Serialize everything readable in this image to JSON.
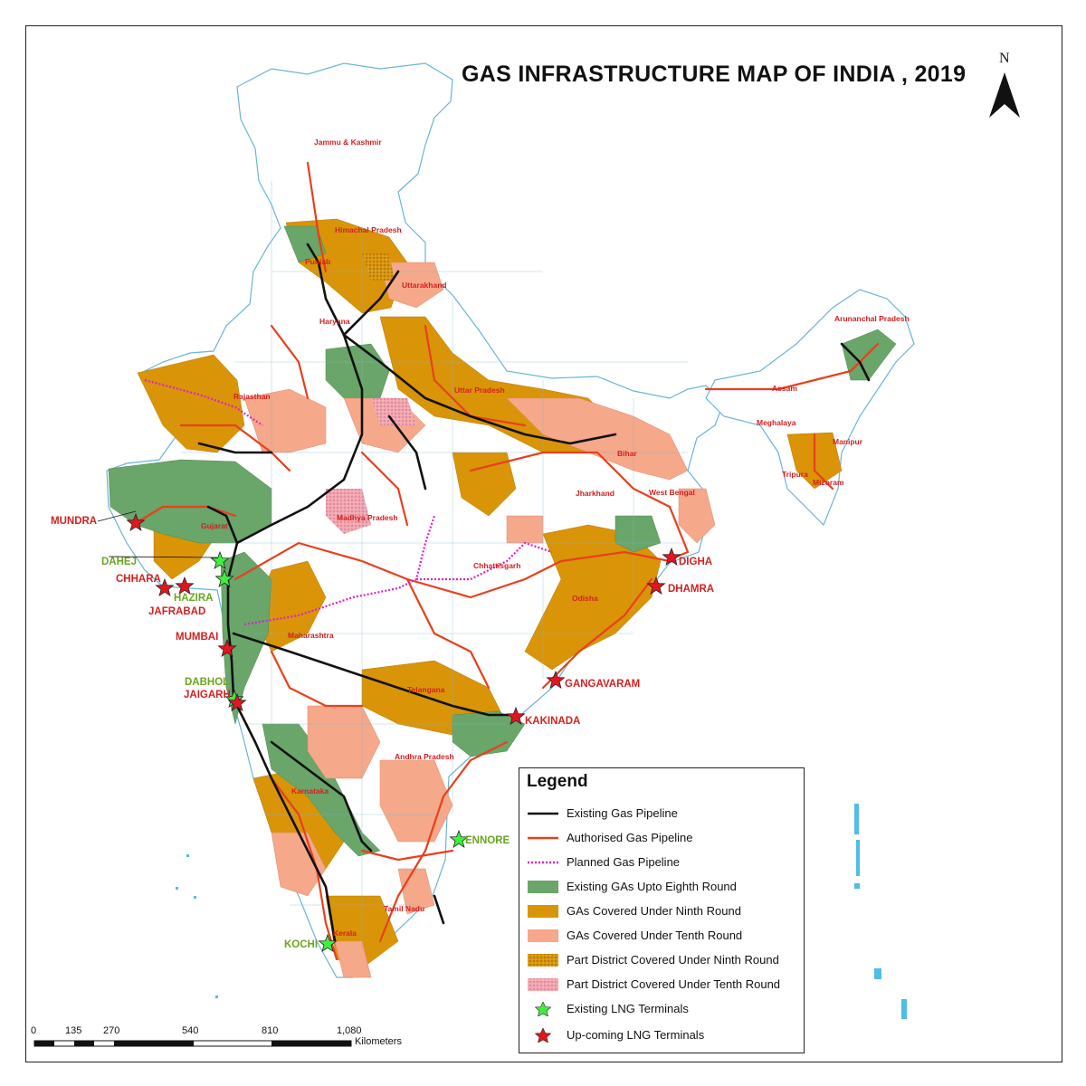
{
  "title": "GAS INFRASTRUCTURE MAP OF INDIA , 2019",
  "north_letter": "N",
  "legend": {
    "title": "Legend",
    "items": [
      {
        "label": "Existing Gas Pipeline",
        "symbol": "black-line",
        "color": "#111111"
      },
      {
        "label": "Authorised Gas Pipeline",
        "symbol": "red-line",
        "color": "#e8401c"
      },
      {
        "label": "Planned Gas Pipeline",
        "symbol": "magenta-dotted-line",
        "color": "#e020c8"
      },
      {
        "label": "Existing GAs Upto Eighth Round",
        "symbol": "green-fill",
        "color": "#6aa56a"
      },
      {
        "label": "GAs Covered Under Ninth Round",
        "symbol": "orange-fill",
        "color": "#d99408"
      },
      {
        "label": "GAs Covered Under Tenth Round",
        "symbol": "salmon-fill",
        "color": "#f5a88a"
      },
      {
        "label": "Part District Covered Under Ninth Round",
        "symbol": "orange-stipple-fill",
        "color": "#c9870a"
      },
      {
        "label": "Part District Covered Under Tenth Round",
        "symbol": "pink-stipple-fill",
        "color": "#e8a0b0"
      },
      {
        "label": "Existing LNG Terminals",
        "symbol": "green-star",
        "color": "#3ef03e"
      },
      {
        "label": "Up-coming LNG Terminals",
        "symbol": "red-star",
        "color": "#e3161e"
      }
    ]
  },
  "terminals_existing": [
    "DAHEJ",
    "HAZIRA",
    "DABHOL",
    "KOCHI",
    "ENNORE"
  ],
  "terminals_upcoming": [
    "MUNDRA",
    "CHHARA",
    "JAFRABAD",
    "MUMBAI",
    "JAIGARH",
    "GANGAVARAM",
    "KAKINADA",
    "DHAMRA",
    "DIGHA"
  ],
  "states": [
    "Jammu & Kashmir",
    "Himachal Pradesh",
    "Punjab",
    "Uttarakhand",
    "Haryana",
    "Rajasthan",
    "Uttar Pradesh",
    "Gujarat",
    "Madhya Pradesh",
    "Bihar",
    "Jharkhand",
    "West Bengal",
    "Chhattisgarh",
    "Odisha",
    "Maharashtra",
    "Telangana",
    "Andhra Pradesh",
    "Karnataka",
    "Tamil Nadu",
    "Kerala",
    "Arunanchal Pradesh",
    "Assam",
    "Meghalaya",
    "Manipur",
    "Tripura",
    "Mizoram"
  ],
  "scale": {
    "ticks": [
      "0",
      "135",
      "270",
      "540",
      "810",
      "1,080"
    ],
    "unit": "Kilometers"
  }
}
